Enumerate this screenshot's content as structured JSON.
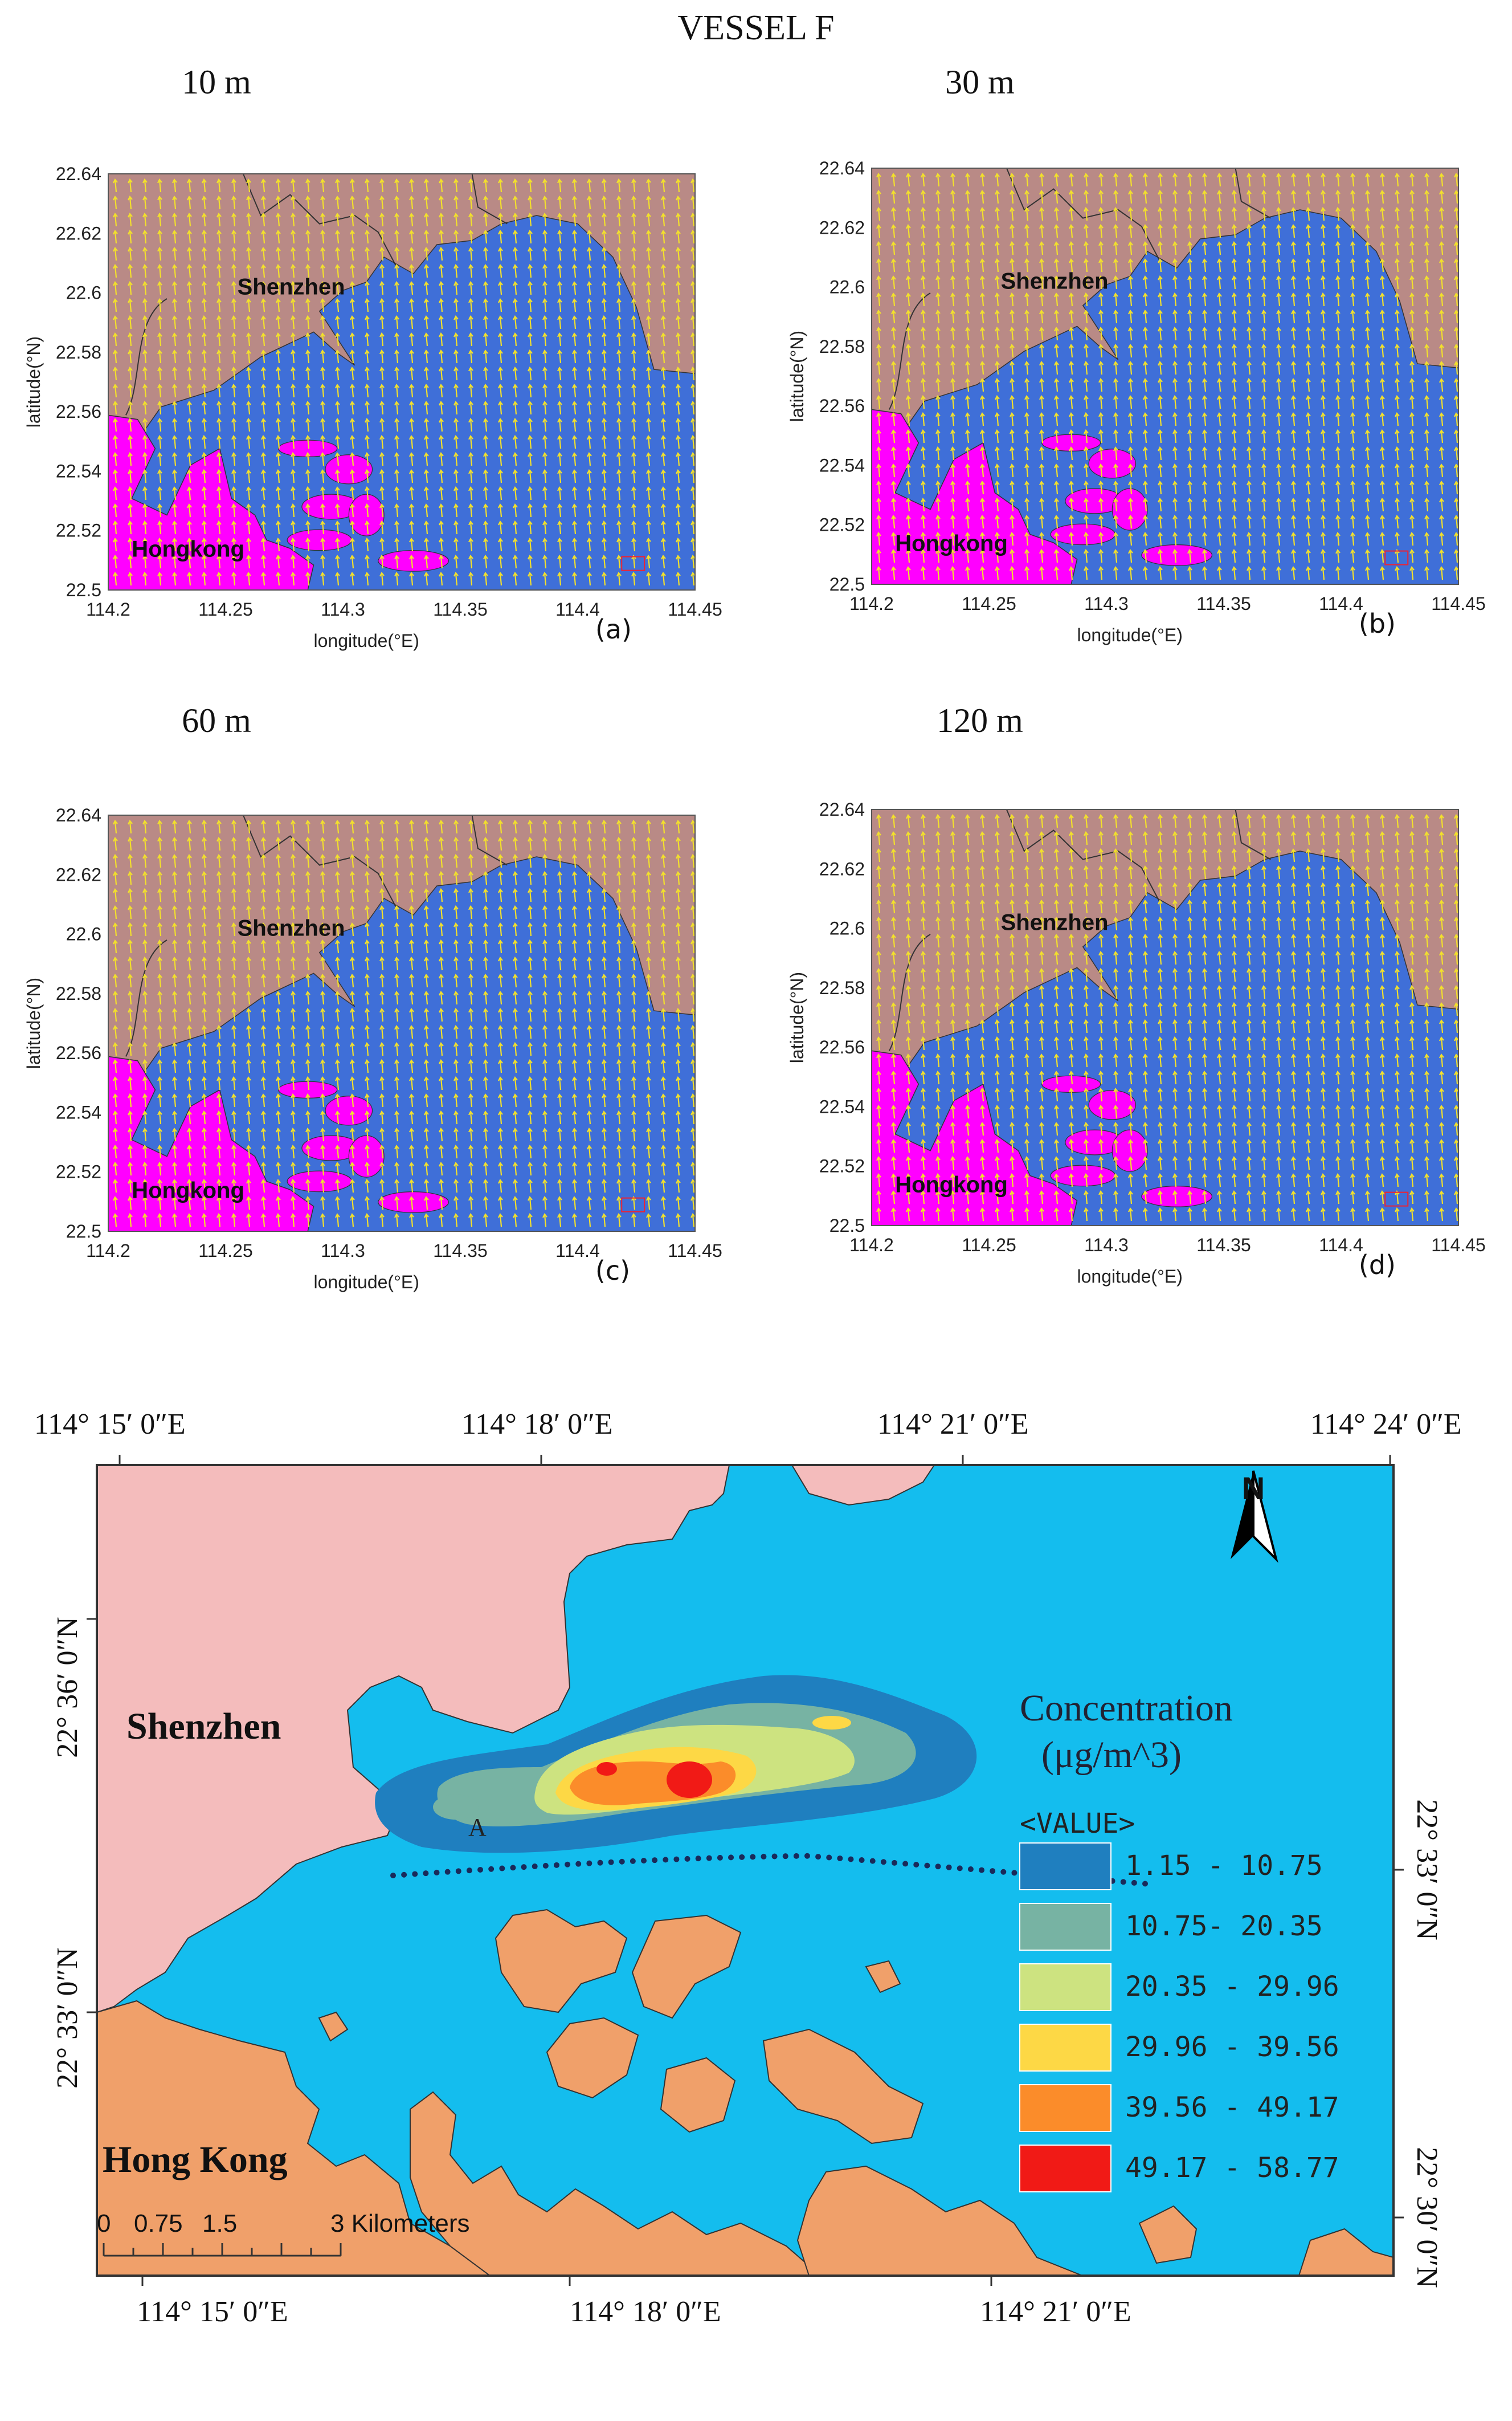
{
  "figure": {
    "title": "VESSEL F",
    "panels": [
      {
        "id": "a",
        "title": "10 m",
        "label": "(a)"
      },
      {
        "id": "b",
        "title": "30 m",
        "label": "(b)"
      },
      {
        "id": "c",
        "title": "60 m",
        "label": "(c)"
      },
      {
        "id": "d",
        "title": "120 m",
        "label": "(d)"
      }
    ],
    "axes": {
      "xlabel": "longitude(°E)",
      "ylabel": "latitude(°N)",
      "xticks": [
        "114.2",
        "114.25",
        "114.3",
        "114.35",
        "114.4",
        "114.45"
      ],
      "yticks": [
        "22.64",
        "22.62",
        "22.6",
        "22.58",
        "22.56",
        "22.54",
        "22.52",
        "22.5"
      ]
    },
    "places": {
      "shenzhen": "Shenzhen",
      "hongkong": "Hongkong"
    },
    "colors": {
      "land_north": "#b98a86",
      "land_hk": "#ff00ff",
      "sea": "#3f6fd8",
      "wind": "#f2e02c"
    }
  },
  "map": {
    "top_ticks": [
      "114°  15′ 0″E",
      "114°  18′ 0″E",
      "114°  21′ 0″E",
      "114°  24′ 0″E"
    ],
    "bottom_ticks": [
      "114°  15′ 0″E",
      "114°  18′ 0″E",
      "114°  21′ 0″E"
    ],
    "left_ticks": [
      "22°  36′ 0″N",
      "22°  33′ 0″N"
    ],
    "right_ticks": [
      "22°  33′ 0″N",
      "22°  30′ 0″N"
    ],
    "places": {
      "shenzhen": "Shenzhen",
      "hongkong": "Hong Kong"
    },
    "point_label": "A",
    "north_label": "N",
    "scale": {
      "labels": [
        "0",
        "0.75",
        "1.5",
        "3 Kilometers"
      ]
    },
    "legend": {
      "title_line1": "Concentration",
      "title_line2": "(μg/m^3)",
      "value_header": "<VALUE>",
      "classes": [
        {
          "range": "1.15 - 10.75",
          "color": "#1f7fbf"
        },
        {
          "range": "10.75- 20.35",
          "color": "#77b3a3"
        },
        {
          "range": "20.35 - 29.96",
          "color": "#cde380"
        },
        {
          "range": "29.96 - 39.56",
          "color": "#fdd845"
        },
        {
          "range": "39.56 - 49.17",
          "color": "#fb8c2a"
        },
        {
          "range": "49.17 - 58.77",
          "color": "#f11a16"
        }
      ]
    },
    "colors": {
      "sea": "#14bdee",
      "shenzhen_land": "#f4bcbc",
      "hk_land": "#f0a06a"
    }
  }
}
